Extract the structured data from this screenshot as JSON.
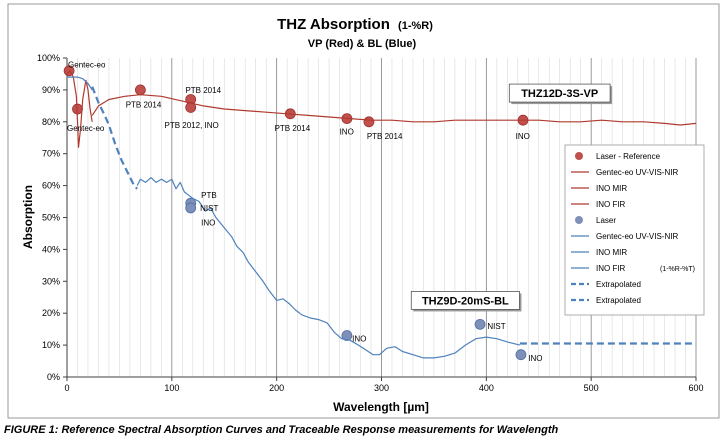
{
  "chart_data": {
    "type": "line",
    "title": "THZ Absorption",
    "title_suffix": "(1-%R)",
    "subtitle": "VP (Red) & BL (Blue)",
    "xlabel": "Wavelength [µm]",
    "ylabel": "Absorption",
    "xlim": [
      0,
      600
    ],
    "ylim": [
      0,
      100
    ],
    "x_ticks": [
      0,
      100,
      200,
      300,
      400,
      500,
      600
    ],
    "y_ticks": [
      0,
      10,
      20,
      30,
      40,
      50,
      60,
      70,
      80,
      90,
      100
    ],
    "y_tick_labels": [
      "0%",
      "10%",
      "20%",
      "30%",
      "40%",
      "50%",
      "60%",
      "70%",
      "80%",
      "90%",
      "100%"
    ],
    "grid": "vertical",
    "legend_position": "right",
    "colors": {
      "vp": "#B03A2E",
      "vp_marker": "#C0504D",
      "bl": "#4F81BD",
      "bl_marker": "#7F90B8",
      "axis": "#404040",
      "grid_major": "#808080",
      "grid_minor": "#D9D9D9"
    },
    "boxes": [
      {
        "text": "THZ12D-3S-VP",
        "x": 470,
        "y": 89
      },
      {
        "text": "THZ9D-20mS-BL",
        "x": 380,
        "y": 24
      }
    ],
    "series": [
      {
        "name": "Laser - Reference",
        "kind": "markers",
        "color": "#C0504D",
        "points": [
          [
            2,
            96
          ],
          [
            10,
            84
          ],
          [
            70,
            90
          ],
          [
            118,
            87
          ],
          [
            118,
            84.5
          ],
          [
            213,
            82.5
          ],
          [
            267,
            81
          ],
          [
            288,
            80
          ],
          [
            435,
            80.5
          ]
        ]
      },
      {
        "name": "Gentec-eo UV-VIS-NIR",
        "kind": "line",
        "color": "#B03A2E",
        "points": [
          [
            0,
            95
          ],
          [
            3,
            96
          ],
          [
            6,
            94
          ],
          [
            9,
            88
          ],
          [
            10,
            80
          ],
          [
            11,
            72
          ],
          [
            13,
            78
          ],
          [
            15,
            87
          ],
          [
            18,
            93
          ],
          [
            20,
            90
          ],
          [
            22,
            84
          ],
          [
            24,
            80
          ]
        ]
      },
      {
        "name": "INO MIR",
        "kind": "line",
        "color": "#B03A2E",
        "points": []
      },
      {
        "name": "INO FIR",
        "kind": "line",
        "color": "#B03A2E",
        "points": [
          [
            24,
            82
          ],
          [
            30,
            85
          ],
          [
            40,
            87
          ],
          [
            55,
            88
          ],
          [
            70,
            88.5
          ],
          [
            90,
            88
          ],
          [
            110,
            86.5
          ],
          [
            130,
            85
          ],
          [
            150,
            84
          ],
          [
            170,
            83.5
          ],
          [
            190,
            83
          ],
          [
            210,
            82.5
          ],
          [
            230,
            82
          ],
          [
            250,
            81.5
          ],
          [
            270,
            81
          ],
          [
            290,
            80.5
          ],
          [
            310,
            80.5
          ],
          [
            330,
            80
          ],
          [
            350,
            80
          ],
          [
            370,
            80.5
          ],
          [
            390,
            80.5
          ],
          [
            410,
            80.5
          ],
          [
            430,
            80.5
          ],
          [
            450,
            80.5
          ],
          [
            470,
            80
          ],
          [
            490,
            80
          ],
          [
            510,
            80.5
          ],
          [
            530,
            80
          ],
          [
            550,
            80
          ],
          [
            570,
            79.5
          ],
          [
            585,
            79
          ],
          [
            600,
            79.5
          ]
        ]
      },
      {
        "name": "Laser",
        "kind": "markers",
        "color": "#7F90B8",
        "points": [
          [
            118,
            54.5
          ],
          [
            118,
            53
          ],
          [
            267,
            13
          ],
          [
            394,
            16.5
          ],
          [
            433,
            7
          ]
        ]
      },
      {
        "name": "Gentec-eo UV-VIS-NIR",
        "kind": "line",
        "color": "#4F81BD",
        "points": [
          [
            0,
            94
          ],
          [
            5,
            94
          ],
          [
            10,
            94
          ],
          [
            15,
            93.5
          ],
          [
            20,
            92
          ],
          [
            24,
            90
          ]
        ]
      },
      {
        "name": "INO MIR",
        "kind": "line",
        "color": "#4F81BD",
        "points": []
      },
      {
        "name": "INO FIR (1-%R-%T)",
        "kind": "line",
        "color": "#4F81BD",
        "points": [
          [
            67,
            60
          ],
          [
            70,
            62
          ],
          [
            75,
            61
          ],
          [
            80,
            62.5
          ],
          [
            85,
            61
          ],
          [
            90,
            62
          ],
          [
            95,
            61
          ],
          [
            100,
            62
          ],
          [
            104,
            59
          ],
          [
            108,
            61
          ],
          [
            112,
            58
          ],
          [
            116,
            57
          ],
          [
            120,
            56
          ],
          [
            126,
            55
          ],
          [
            132,
            52
          ],
          [
            137,
            53
          ],
          [
            142,
            50
          ],
          [
            147,
            48
          ],
          [
            152,
            46
          ],
          [
            157,
            44
          ],
          [
            162,
            41
          ],
          [
            168,
            39
          ],
          [
            173,
            36
          ],
          [
            180,
            33
          ],
          [
            187,
            30
          ],
          [
            193,
            27
          ],
          [
            200,
            24
          ],
          [
            206,
            24.5
          ],
          [
            212,
            23
          ],
          [
            218,
            21
          ],
          [
            224,
            19.5
          ],
          [
            232,
            18.5
          ],
          [
            240,
            18
          ],
          [
            248,
            17
          ],
          [
            255,
            14
          ],
          [
            262,
            12
          ],
          [
            270,
            11.5
          ],
          [
            278,
            10
          ],
          [
            285,
            8.5
          ],
          [
            292,
            7
          ],
          [
            298,
            7
          ],
          [
            305,
            9
          ],
          [
            313,
            9.5
          ],
          [
            320,
            8
          ],
          [
            330,
            7
          ],
          [
            340,
            6
          ],
          [
            350,
            6
          ],
          [
            360,
            6.5
          ],
          [
            370,
            7.5
          ],
          [
            380,
            10
          ],
          [
            390,
            12
          ],
          [
            400,
            12.5
          ],
          [
            410,
            12
          ],
          [
            420,
            11
          ],
          [
            432,
            10
          ]
        ]
      },
      {
        "name": "Extrapolated",
        "kind": "dashed",
        "color": "#4F81BD",
        "points": [
          [
            24,
            91
          ],
          [
            30,
            86
          ],
          [
            36,
            82
          ],
          [
            40,
            79
          ],
          [
            46,
            73
          ],
          [
            52,
            68
          ],
          [
            58,
            64
          ],
          [
            64,
            60
          ],
          [
            67,
            59
          ]
        ]
      },
      {
        "name": "Extrapolated",
        "kind": "dashed",
        "color": "#4F81BD",
        "points": [
          [
            432,
            10.5
          ],
          [
            600,
            10.5
          ]
        ]
      }
    ],
    "annotations": [
      {
        "text": "Gentec-eo",
        "x": 1,
        "y": 98,
        "anchor": "start"
      },
      {
        "text": "Gentec-eo",
        "x": 0,
        "y": 78,
        "anchor": "start"
      },
      {
        "text": "PTB 2014",
        "x": 56,
        "y": 85.5,
        "anchor": "start"
      },
      {
        "text": "PTB 2014",
        "x": 113,
        "y": 90,
        "anchor": "start"
      },
      {
        "text": "PTB 2012, INO",
        "x": 93,
        "y": 79,
        "anchor": "start"
      },
      {
        "text": "PTB 2014",
        "x": 198,
        "y": 78,
        "anchor": "start"
      },
      {
        "text": "INO",
        "x": 260,
        "y": 77,
        "anchor": "start"
      },
      {
        "text": "PTB 2014",
        "x": 286,
        "y": 75.5,
        "anchor": "start"
      },
      {
        "text": "INO",
        "x": 428,
        "y": 75.5,
        "anchor": "start"
      },
      {
        "text": "PTB",
        "x": 128,
        "y": 57,
        "anchor": "start"
      },
      {
        "text": "NIST",
        "x": 127,
        "y": 53,
        "anchor": "start"
      },
      {
        "text": "INO",
        "x": 128,
        "y": 48.5,
        "anchor": "start"
      },
      {
        "text": "INO",
        "x": 272,
        "y": 12,
        "anchor": "start"
      },
      {
        "text": "NIST",
        "x": 401,
        "y": 16,
        "anchor": "start"
      },
      {
        "text": "INO",
        "x": 440,
        "y": 6,
        "anchor": "start"
      }
    ],
    "legend": [
      {
        "label": "Laser - Reference",
        "kind": "marker",
        "color": "#C0504D"
      },
      {
        "label": "Gentec-eo UV-VIS-NIR",
        "kind": "line",
        "color": "#B03A2E"
      },
      {
        "label": "INO MIR",
        "kind": "line",
        "color": "#B03A2E"
      },
      {
        "label": "INO FIR",
        "kind": "line",
        "color": "#B03A2E"
      },
      {
        "label": "Laser",
        "kind": "marker",
        "color": "#7F90B8"
      },
      {
        "label": "Gentec-eo UV-VIS-NIR",
        "kind": "line",
        "color": "#4F81BD"
      },
      {
        "label": "INO MIR",
        "kind": "line",
        "color": "#4F81BD"
      },
      {
        "label": "INO FIR",
        "extra": "(1-%R-%T)",
        "kind": "line",
        "color": "#4F81BD"
      },
      {
        "label": "Extrapolated",
        "kind": "dashed",
        "color": "#4F81BD"
      },
      {
        "label": "Extrapolated",
        "kind": "dashed",
        "color": "#4F81BD"
      }
    ]
  },
  "caption": "FIGURE 1: Reference Spectral Absorption Curves and Traceable Response measurements for Wavelength"
}
